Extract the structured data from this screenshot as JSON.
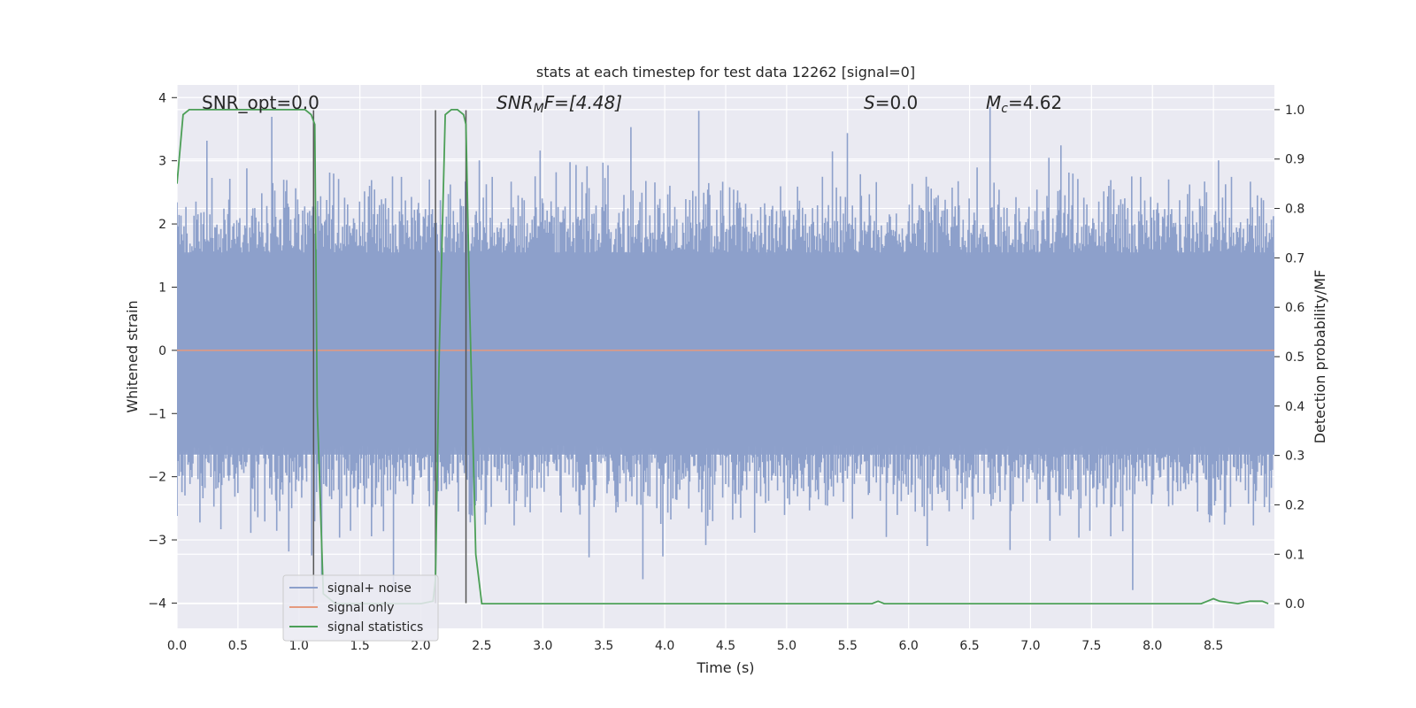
{
  "chart_data": {
    "type": "line",
    "title": "stats at each timestep for test data 12262 [signal=0]",
    "xlabel": "Time (s)",
    "ylabel": "Whitened strain",
    "y2label": "Detection probability/MF",
    "xlim": [
      0.0,
      9.0
    ],
    "ylim": [
      -4.4,
      4.2
    ],
    "y2lim": [
      -0.05,
      1.05
    ],
    "grid": true,
    "legend_position": "lower-left",
    "x_ticks": [
      "0.0",
      "0.5",
      "1.0",
      "1.5",
      "2.0",
      "2.5",
      "3.0",
      "3.5",
      "4.0",
      "4.5",
      "5.0",
      "5.5",
      "6.0",
      "6.5",
      "7.0",
      "7.5",
      "8.0",
      "8.5"
    ],
    "y_ticks": [
      "4",
      "3",
      "2",
      "1",
      "0",
      "−1",
      "−2",
      "−3",
      "−4"
    ],
    "y2_ticks": [
      "1.0",
      "0.9",
      "0.8",
      "0.7",
      "0.6",
      "0.5",
      "0.4",
      "0.3",
      "0.2",
      "0.1",
      "0.0"
    ],
    "annotations": {
      "snr_opt": "SNR_opt=0.0",
      "snr_mf_base": "SNR",
      "snr_mf_sub": "M",
      "snr_mf_rest": "F=[4.48]",
      "s_base": "S",
      "s_rest": "=0.0",
      "mc_base": "M",
      "mc_sub": "c",
      "mc_rest": "=4.62"
    },
    "colors": {
      "noise": "#8da0cb",
      "signal_only": "#e59a7e",
      "statistics": "#4c9f57",
      "markers": "#555555",
      "background": "#eaeaf2"
    },
    "series": [
      {
        "name": "signal+ noise",
        "description_level": "dense noise, typical range -2 to 2.5, peaks near +3.8 and -4.0"
      },
      {
        "name": "signal only",
        "x": [
          0.0,
          9.0
        ],
        "y": [
          0.0,
          0.0
        ]
      },
      {
        "name": "signal statistics",
        "axis": "right",
        "x": [
          0.0,
          0.05,
          0.1,
          0.15,
          0.2,
          0.5,
          0.8,
          1.0,
          1.05,
          1.1,
          1.13,
          1.15,
          1.2,
          1.3,
          1.5,
          1.8,
          2.0,
          2.1,
          2.12,
          2.15,
          2.2,
          2.25,
          2.3,
          2.35,
          2.37,
          2.4,
          2.45,
          2.5,
          3.0,
          4.0,
          5.0,
          5.7,
          5.75,
          5.8,
          6.5,
          7.5,
          8.4,
          8.45,
          8.5,
          8.55,
          8.7,
          8.8,
          8.85,
          8.9,
          8.95
        ],
        "y": [
          0.85,
          0.99,
          1.0,
          1.0,
          1.0,
          1.0,
          1.0,
          1.0,
          1.0,
          0.99,
          0.97,
          0.4,
          0.02,
          0.0,
          0.0,
          0.0,
          0.0,
          0.005,
          0.05,
          0.5,
          0.99,
          1.0,
          1.0,
          0.99,
          0.97,
          0.6,
          0.1,
          0.0,
          0.0,
          0.0,
          0.0,
          0.0,
          0.005,
          0.0,
          0.0,
          0.0,
          0.0,
          0.005,
          0.01,
          0.005,
          0.0,
          0.005,
          0.005,
          0.005,
          0.0
        ]
      }
    ],
    "vertical_markers_x": [
      1.12,
      2.12,
      2.37
    ],
    "vertical_markers_ylim": [
      -4.0,
      3.8
    ]
  }
}
